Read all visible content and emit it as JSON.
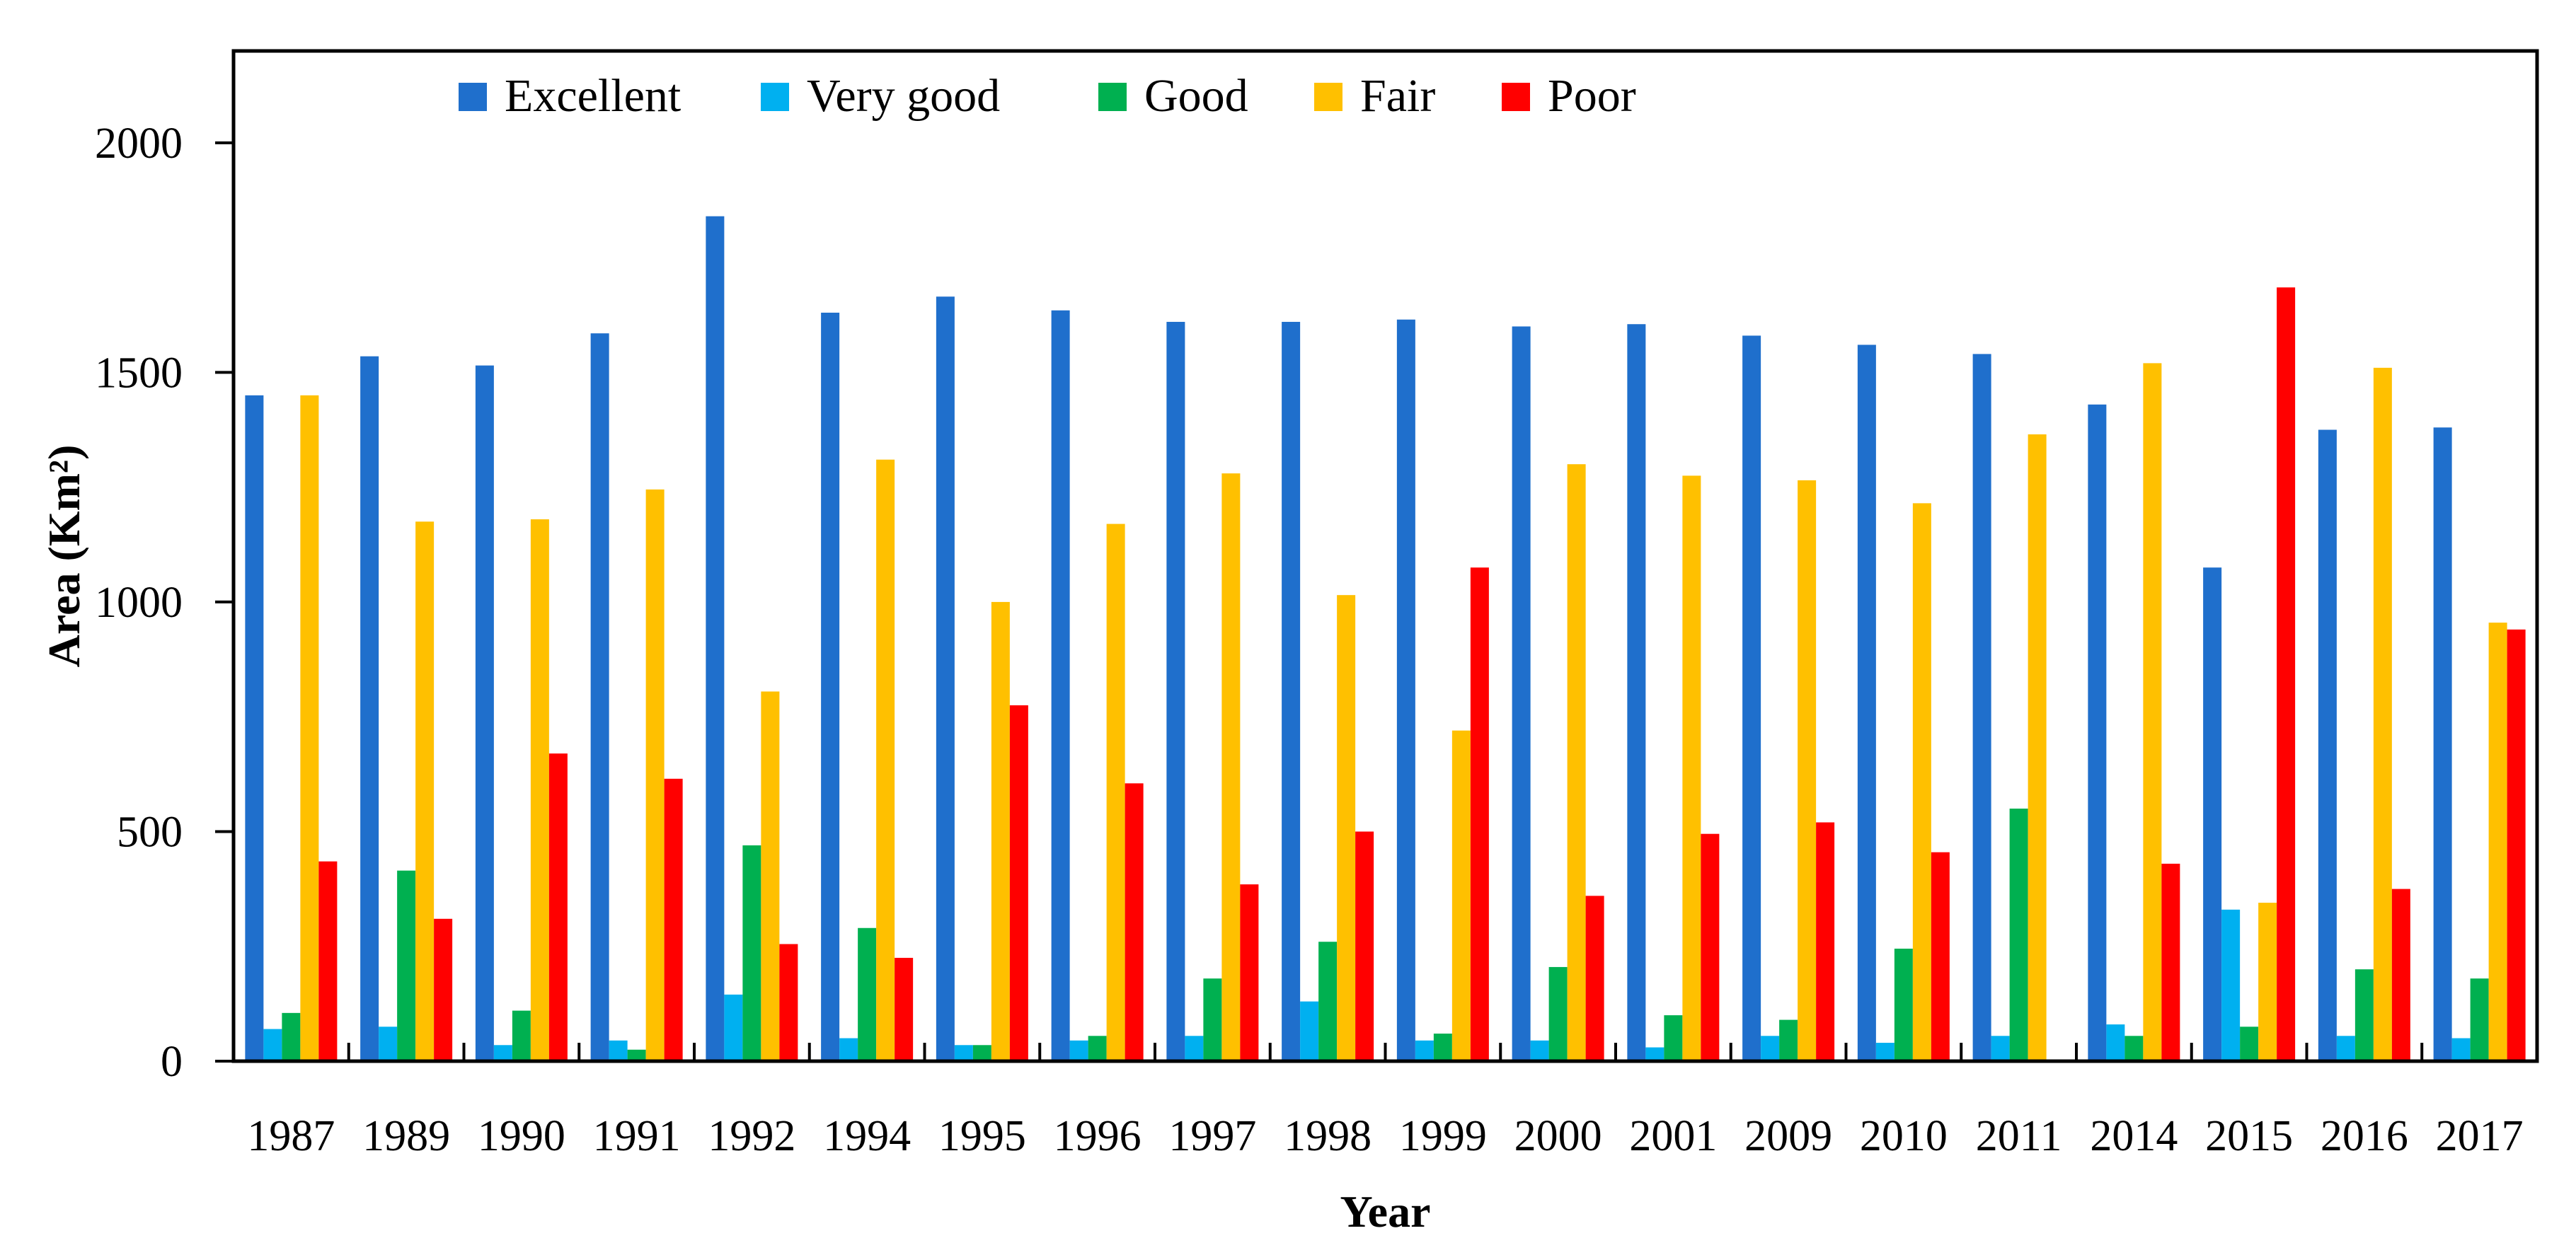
{
  "chart_data": {
    "type": "bar",
    "title": "",
    "xlabel": "Year",
    "ylabel": "Area (Km²)",
    "ylim": [
      0,
      2200
    ],
    "yticks": [
      0,
      500,
      1000,
      1500,
      2000
    ],
    "grid": false,
    "legend_position": "top",
    "categories": [
      "1987",
      "1989",
      "1990",
      "1991",
      "1992",
      "1994",
      "1995",
      "1996",
      "1997",
      "1998",
      "1999",
      "2000",
      "2001",
      "2009",
      "2010",
      "2011",
      "2014",
      "2015",
      "2016",
      "2017"
    ],
    "series": [
      {
        "name": "Excellent",
        "color": "#1f6fcc",
        "values": [
          1450,
          1535,
          1515,
          1585,
          1840,
          1630,
          1665,
          1635,
          1610,
          1610,
          1615,
          1600,
          1605,
          1580,
          1560,
          1540,
          1430,
          1075,
          1375,
          1380
        ]
      },
      {
        "name": "Very good",
        "color": "#00b0f0",
        "values": [
          70,
          75,
          35,
          45,
          145,
          50,
          35,
          45,
          55,
          130,
          45,
          45,
          30,
          55,
          40,
          55,
          80,
          330,
          55,
          50
        ]
      },
      {
        "name": "Good",
        "color": "#00b050",
        "values": [
          105,
          415,
          110,
          25,
          470,
          290,
          35,
          55,
          180,
          260,
          60,
          205,
          100,
          90,
          245,
          550,
          55,
          75,
          200,
          180
        ]
      },
      {
        "name": "Fair",
        "color": "#ffc000",
        "values": [
          1450,
          1175,
          1180,
          1245,
          805,
          1310,
          1000,
          1170,
          1280,
          1015,
          720,
          1300,
          1275,
          1265,
          1215,
          1365,
          1520,
          345,
          1510,
          955
        ]
      },
      {
        "name": "Poor",
        "color": "#ff0000",
        "values": [
          435,
          310,
          670,
          615,
          255,
          225,
          775,
          605,
          385,
          500,
          1075,
          360,
          495,
          520,
          455,
          0,
          430,
          1685,
          375,
          940
        ]
      }
    ]
  }
}
